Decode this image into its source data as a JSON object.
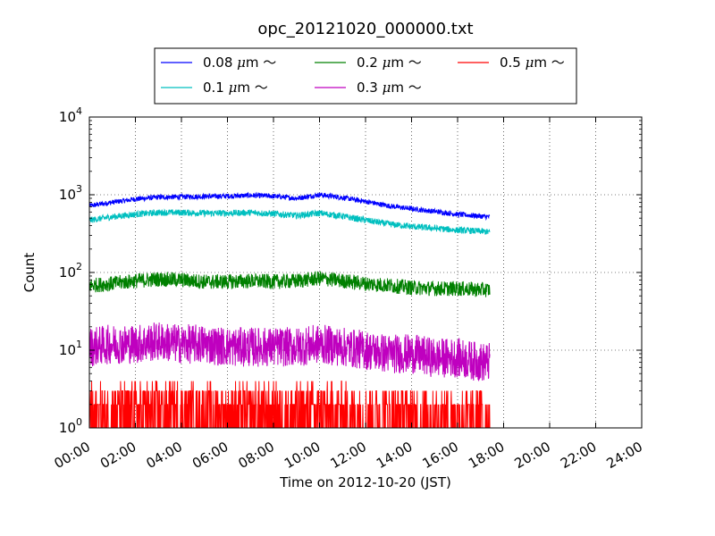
{
  "chart_data": {
    "type": "line",
    "title": "opc_20121020_000000.txt",
    "xlabel": "Time on 2012-10-20 (JST)",
    "ylabel": "Count",
    "yscale": "log",
    "ylim": [
      1,
      10000
    ],
    "xlim": [
      "00:00",
      "24:00"
    ],
    "grid": true,
    "legend_position": "top",
    "x_ticks": [
      "00:00",
      "02:00",
      "04:00",
      "06:00",
      "08:00",
      "10:00",
      "12:00",
      "14:00",
      "16:00",
      "18:00",
      "20:00",
      "22:00",
      "24:00"
    ],
    "y_ticks": [
      {
        "base": "10",
        "exp": "0",
        "value": 1
      },
      {
        "base": "10",
        "exp": "1",
        "value": 10
      },
      {
        "base": "10",
        "exp": "2",
        "value": 100
      },
      {
        "base": "10",
        "exp": "3",
        "value": 1000
      },
      {
        "base": "10",
        "exp": "4",
        "value": 10000
      }
    ],
    "x_hours": [
      0,
      1,
      2,
      3,
      4,
      5,
      6,
      7,
      8,
      9,
      10,
      11,
      12,
      13,
      14,
      15,
      16,
      17,
      17.4
    ],
    "series": [
      {
        "name": "0.08 μm ～",
        "label_prefix": "0.08 ",
        "label_mu": "μ",
        "label_suffix": "m ～",
        "color": "#0000ff",
        "values": [
          720,
          800,
          880,
          930,
          940,
          950,
          960,
          980,
          960,
          900,
          1000,
          920,
          820,
          720,
          660,
          610,
          560,
          530,
          520
        ],
        "noise_ratio": 1.08
      },
      {
        "name": "0.1 μm ～",
        "label_prefix": "0.1 ",
        "label_mu": "μ",
        "label_suffix": "m ～",
        "color": "#00bfbf",
        "values": [
          470,
          520,
          560,
          590,
          590,
          580,
          580,
          590,
          570,
          540,
          580,
          530,
          470,
          420,
          390,
          370,
          350,
          340,
          330
        ],
        "noise_ratio": 1.1
      },
      {
        "name": "0.2 μm ～",
        "label_prefix": "0.2 ",
        "label_mu": "μ",
        "label_suffix": "m ～",
        "color": "#008000",
        "values": [
          68,
          72,
          78,
          82,
          80,
          76,
          76,
          78,
          76,
          78,
          84,
          78,
          72,
          68,
          64,
          62,
          62,
          60,
          60
        ],
        "noise_ratio": 1.25
      },
      {
        "name": "0.3 μm ～",
        "label_prefix": "0.3 ",
        "label_mu": "μ",
        "label_suffix": "m ～",
        "color": "#bf00bf",
        "values": [
          11,
          12,
          12,
          13,
          12,
          12,
          11,
          11,
          11,
          11,
          12,
          11,
          10,
          9,
          9,
          8,
          8,
          7,
          7
        ],
        "noise_ratio": 1.8
      },
      {
        "name": "0.5 μm ～",
        "label_prefix": "0.5 ",
        "label_mu": "μ",
        "label_suffix": "m ～",
        "color": "#ff0000",
        "values": [
          1.5,
          1.5,
          1.6,
          1.6,
          1.6,
          1.5,
          1.5,
          1.5,
          1.5,
          1.5,
          1.6,
          1.5,
          1.4,
          1.4,
          1.4,
          1.3,
          1.3,
          1.3,
          1.3
        ],
        "noise_ratio": 2.5
      }
    ]
  }
}
